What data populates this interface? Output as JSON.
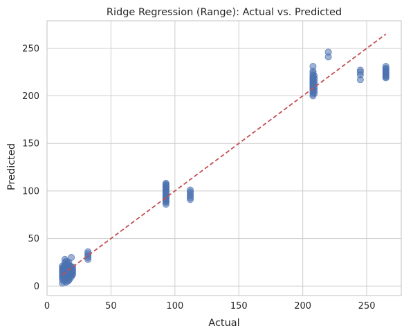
{
  "chart_data": {
    "type": "scatter",
    "title": "Ridge Regression (Range): Actual vs. Predicted",
    "xlabel": "Actual",
    "ylabel": "Predicted",
    "xlim": [
      0,
      277
    ],
    "ylim": [
      -10,
      279
    ],
    "xticks": [
      0,
      50,
      100,
      150,
      200,
      250
    ],
    "yticks": [
      0,
      50,
      100,
      150,
      200,
      250
    ],
    "grid": true,
    "point_color": "#4c72b0",
    "point_opacity": 0.55,
    "reference_line": {
      "style": "dashed",
      "color": "#c44e52",
      "from": [
        12,
        12
      ],
      "to": [
        265,
        265
      ]
    },
    "points": [
      [
        12,
        3
      ],
      [
        12,
        7
      ],
      [
        12,
        9
      ],
      [
        12,
        11
      ],
      [
        12,
        13
      ],
      [
        12,
        15
      ],
      [
        12,
        17
      ],
      [
        12,
        19
      ],
      [
        12,
        21
      ],
      [
        13,
        5
      ],
      [
        13,
        8
      ],
      [
        13,
        10
      ],
      [
        13,
        12
      ],
      [
        13,
        14
      ],
      [
        13,
        16
      ],
      [
        13,
        18
      ],
      [
        13,
        20
      ],
      [
        14,
        6
      ],
      [
        14,
        9
      ],
      [
        14,
        11
      ],
      [
        14,
        13
      ],
      [
        14,
        15
      ],
      [
        14,
        17
      ],
      [
        14,
        19
      ],
      [
        14,
        22
      ],
      [
        14,
        25
      ],
      [
        14,
        28
      ],
      [
        15,
        4
      ],
      [
        15,
        7
      ],
      [
        15,
        10
      ],
      [
        15,
        12
      ],
      [
        15,
        14
      ],
      [
        15,
        16
      ],
      [
        15,
        18
      ],
      [
        15,
        20
      ],
      [
        15,
        23
      ],
      [
        15,
        26
      ],
      [
        16,
        5
      ],
      [
        16,
        8
      ],
      [
        16,
        11
      ],
      [
        16,
        13
      ],
      [
        16,
        15
      ],
      [
        16,
        17
      ],
      [
        16,
        19
      ],
      [
        16,
        21
      ],
      [
        16,
        24
      ],
      [
        17,
        6
      ],
      [
        17,
        9
      ],
      [
        17,
        12
      ],
      [
        17,
        14
      ],
      [
        17,
        16
      ],
      [
        17,
        18
      ],
      [
        17,
        20
      ],
      [
        17,
        22
      ],
      [
        17,
        25
      ],
      [
        18,
        8
      ],
      [
        18,
        11
      ],
      [
        18,
        13
      ],
      [
        18,
        15
      ],
      [
        18,
        17
      ],
      [
        18,
        19
      ],
      [
        18,
        21
      ],
      [
        19,
        10
      ],
      [
        19,
        12
      ],
      [
        19,
        14
      ],
      [
        19,
        16
      ],
      [
        19,
        18
      ],
      [
        19,
        20
      ],
      [
        19,
        30
      ],
      [
        20,
        12
      ],
      [
        20,
        14
      ],
      [
        20,
        16
      ],
      [
        20,
        18
      ],
      [
        20,
        20
      ],
      [
        32,
        28
      ],
      [
        32,
        30
      ],
      [
        32,
        32
      ],
      [
        32,
        34
      ],
      [
        32,
        36
      ],
      [
        93,
        86
      ],
      [
        93,
        88
      ],
      [
        93,
        89
      ],
      [
        93,
        90
      ],
      [
        93,
        91
      ],
      [
        93,
        92
      ],
      [
        93,
        93
      ],
      [
        93,
        94
      ],
      [
        93,
        95
      ],
      [
        93,
        96
      ],
      [
        93,
        97
      ],
      [
        93,
        98
      ],
      [
        93,
        99
      ],
      [
        93,
        100
      ],
      [
        93,
        101
      ],
      [
        93,
        102
      ],
      [
        93,
        103
      ],
      [
        93,
        104
      ],
      [
        93,
        105
      ],
      [
        93,
        106
      ],
      [
        93,
        107
      ],
      [
        93,
        108
      ],
      [
        112,
        91
      ],
      [
        112,
        93
      ],
      [
        112,
        95
      ],
      [
        112,
        97
      ],
      [
        112,
        99
      ],
      [
        112,
        101
      ],
      [
        208,
        200
      ],
      [
        208,
        202
      ],
      [
        208,
        204
      ],
      [
        208,
        206
      ],
      [
        208,
        207
      ],
      [
        208,
        208
      ],
      [
        208,
        209
      ],
      [
        208,
        210
      ],
      [
        208,
        211
      ],
      [
        208,
        212
      ],
      [
        208,
        213
      ],
      [
        208,
        214
      ],
      [
        208,
        215
      ],
      [
        208,
        216
      ],
      [
        208,
        217
      ],
      [
        208,
        218
      ],
      [
        208,
        219
      ],
      [
        208,
        220
      ],
      [
        208,
        222
      ],
      [
        208,
        224
      ],
      [
        208,
        226
      ],
      [
        208,
        231
      ],
      [
        209,
        203
      ],
      [
        209,
        206
      ],
      [
        209,
        209
      ],
      [
        209,
        212
      ],
      [
        209,
        215
      ],
      [
        209,
        218
      ],
      [
        209,
        221
      ],
      [
        220,
        241
      ],
      [
        220,
        246
      ],
      [
        245,
        217
      ],
      [
        245,
        222
      ],
      [
        245,
        225
      ],
      [
        245,
        227
      ],
      [
        265,
        219
      ],
      [
        265,
        220
      ],
      [
        265,
        221
      ],
      [
        265,
        222
      ],
      [
        265,
        223
      ],
      [
        265,
        224
      ],
      [
        265,
        225
      ],
      [
        265,
        226
      ],
      [
        265,
        227
      ],
      [
        265,
        228
      ],
      [
        265,
        229
      ],
      [
        265,
        231
      ]
    ]
  }
}
